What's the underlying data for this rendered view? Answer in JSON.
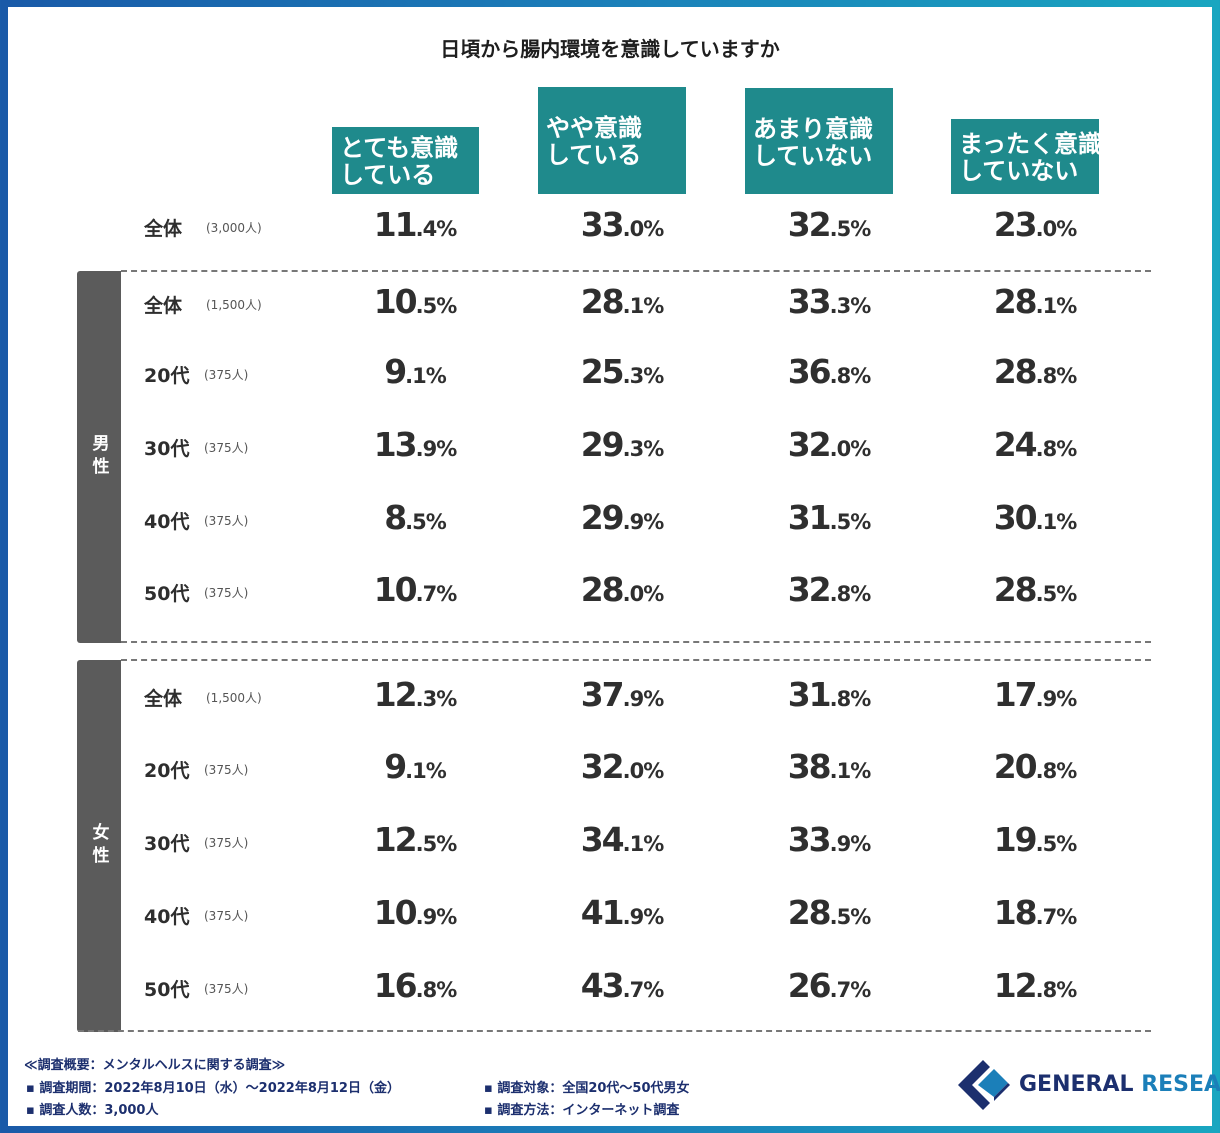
{
  "title": "日頃から腸内環境を意識していますか",
  "chart_data": {
    "type": "table",
    "title": "日頃から腸内環境を意識していますか",
    "columns": [
      {
        "line1": "とても意識",
        "line2": "している"
      },
      {
        "line1": "やや意識",
        "line2": "している"
      },
      {
        "line1": "あまり意識",
        "line2": "していない"
      },
      {
        "line1": "まったく意識",
        "line2": "していない"
      }
    ],
    "groups": [
      {
        "label": "全体",
        "count": "(3,000人)",
        "values": [
          "11.4%",
          "33.0%",
          "32.5%",
          "23.0%"
        ]
      },
      {
        "label": "男性",
        "rows": [
          {
            "label": "全体",
            "count": "(1,500人)",
            "values": [
              "10.5%",
              "28.1%",
              "33.3%",
              "28.1%"
            ]
          },
          {
            "label": "20代",
            "count": "(375人)",
            "values": [
              "9.1%",
              "25.3%",
              "36.8%",
              "28.8%"
            ]
          },
          {
            "label": "30代",
            "count": "(375人)",
            "values": [
              "13.9%",
              "29.3%",
              "32.0%",
              "24.8%"
            ]
          },
          {
            "label": "40代",
            "count": "(375人)",
            "values": [
              "8.5%",
              "29.9%",
              "31.5%",
              "30.1%"
            ]
          },
          {
            "label": "50代",
            "count": "(375人)",
            "values": [
              "10.7%",
              "28.0%",
              "32.8%",
              "28.5%"
            ]
          }
        ]
      },
      {
        "label": "女性",
        "rows": [
          {
            "label": "全体",
            "count": "(1,500人)",
            "values": [
              "12.3%",
              "37.9%",
              "31.8%",
              "17.9%"
            ]
          },
          {
            "label": "20代",
            "count": "(375人)",
            "values": [
              "9.1%",
              "32.0%",
              "38.1%",
              "20.8%"
            ]
          },
          {
            "label": "30代",
            "count": "(375人)",
            "values": [
              "12.5%",
              "34.1%",
              "33.9%",
              "19.5%"
            ]
          },
          {
            "label": "40代",
            "count": "(375人)",
            "values": [
              "10.9%",
              "41.9%",
              "28.5%",
              "18.7%"
            ]
          },
          {
            "label": "50代",
            "count": "(375人)",
            "values": [
              "16.8%",
              "43.7%",
              "26.7%",
              "12.8%"
            ]
          }
        ]
      }
    ]
  },
  "footer": {
    "heading": "≪調査概要：メンタルヘルスに関する調査≫",
    "period": "▪ 調査期間：2022年8月10日（水）〜2022年8月12日（金）",
    "respondents": "▪ 調査人数：3,000人",
    "target": "▪ 調査対象：全国20代〜50代男女",
    "method": "▪ 調査方法：インターネット調査"
  },
  "brand": {
    "part1": "GENERAL",
    "part2": "RESEARCH"
  },
  "colors": {
    "header": "#1f8a8c",
    "group_bar": "#5b5b5b",
    "brand_navy": "#1c2f6e",
    "brand_blue": "#1b7fb9"
  }
}
